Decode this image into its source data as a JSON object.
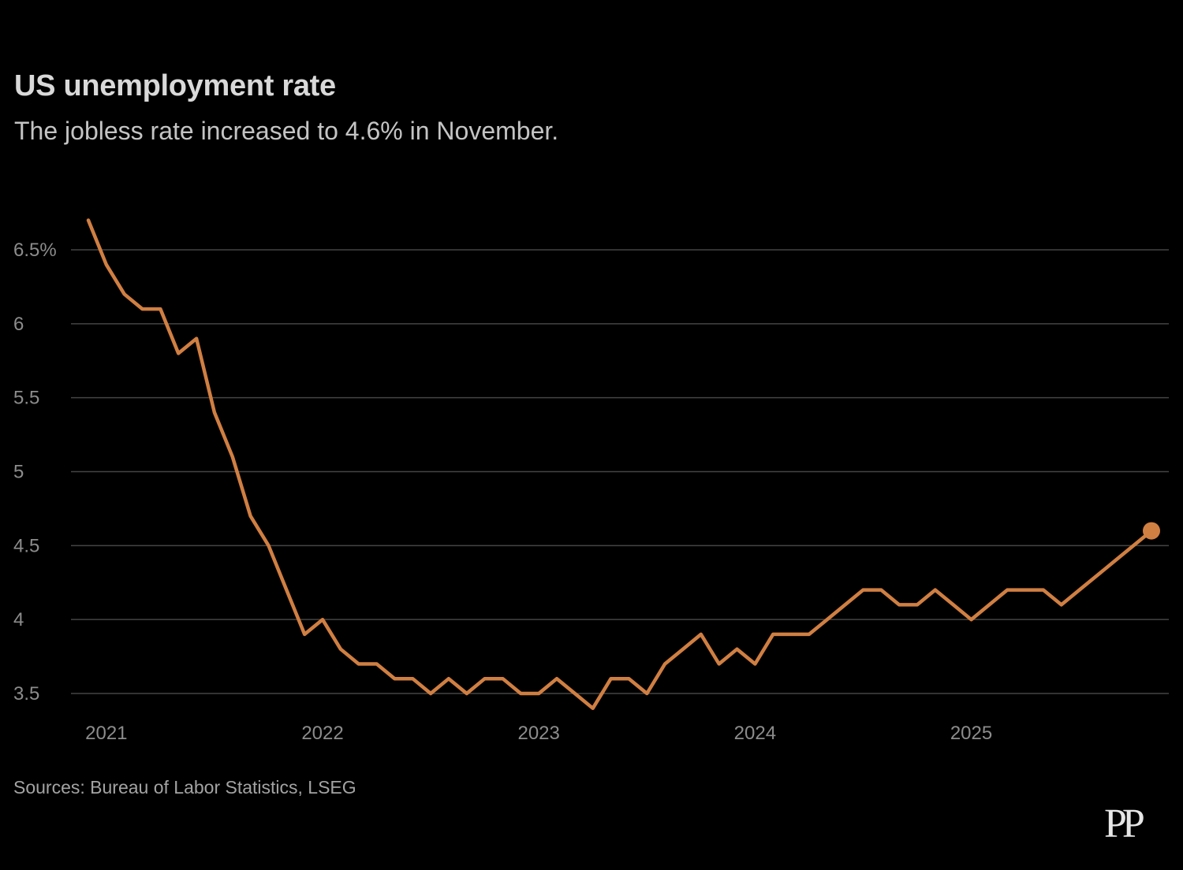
{
  "colors": {
    "background": "#000000",
    "line": "#d07f42",
    "grid": "#444444"
  },
  "source": "Sources: Bureau of Labor Statistics, LSEG",
  "logo": "PP",
  "chart_data": {
    "type": "line",
    "title": "US unemployment rate",
    "subtitle": "The jobless rate increased to 4.6% in November.",
    "xlabel": "",
    "ylabel": "",
    "ylim": [
      3.4,
      6.7
    ],
    "yticks": [
      {
        "value": 6.5,
        "label": "6.5%"
      },
      {
        "value": 6,
        "label": "6"
      },
      {
        "value": 5.5,
        "label": "5.5"
      },
      {
        "value": 5,
        "label": "5"
      },
      {
        "value": 4.5,
        "label": "4.5"
      },
      {
        "value": 4,
        "label": "4"
      },
      {
        "value": 3.5,
        "label": "3.5"
      }
    ],
    "xticks": [
      {
        "value": "2021-01",
        "label": "2021"
      },
      {
        "value": "2022-01",
        "label": "2022"
      },
      {
        "value": "2023-01",
        "label": "2023"
      },
      {
        "value": "2024-01",
        "label": "2024"
      },
      {
        "value": "2025-01",
        "label": "2025"
      }
    ],
    "grid": true,
    "legend": "none",
    "series": [
      {
        "x": [
          "2020-12",
          "2021-01",
          "2021-02",
          "2021-03",
          "2021-04",
          "2021-05",
          "2021-06",
          "2021-07",
          "2021-08",
          "2021-09",
          "2021-10",
          "2021-11",
          "2021-12",
          "2022-01",
          "2022-02",
          "2022-03",
          "2022-04",
          "2022-05",
          "2022-06",
          "2022-07",
          "2022-08",
          "2022-09",
          "2022-10",
          "2022-11",
          "2022-12",
          "2023-01",
          "2023-02",
          "2023-03",
          "2023-04",
          "2023-05",
          "2023-06",
          "2023-07",
          "2023-08",
          "2023-09",
          "2023-10",
          "2023-11",
          "2023-12",
          "2024-01",
          "2024-02",
          "2024-03",
          "2024-04",
          "2024-05",
          "2024-06",
          "2024-07",
          "2024-08",
          "2024-09",
          "2024-10",
          "2024-11",
          "2024-12",
          "2025-01",
          "2025-02",
          "2025-03",
          "2025-04",
          "2025-05",
          "2025-06",
          "2025-07",
          "2025-08",
          "2025-09",
          "2025-11"
        ],
        "values": [
          6.7,
          6.4,
          6.2,
          6.1,
          6.1,
          5.8,
          5.9,
          5.4,
          5.1,
          4.7,
          4.5,
          4.2,
          3.9,
          4.0,
          3.8,
          3.7,
          3.7,
          3.6,
          3.6,
          3.5,
          3.6,
          3.5,
          3.6,
          3.6,
          3.5,
          3.5,
          3.6,
          3.5,
          3.4,
          3.6,
          3.6,
          3.5,
          3.7,
          3.8,
          3.9,
          3.7,
          3.8,
          3.7,
          3.9,
          3.9,
          3.9,
          4.0,
          4.1,
          4.2,
          4.2,
          4.1,
          4.1,
          4.2,
          4.1,
          4.0,
          4.1,
          4.2,
          4.2,
          4.2,
          4.1,
          4.2,
          4.3,
          4.4,
          4.6
        ]
      }
    ],
    "highlight_last": true
  }
}
